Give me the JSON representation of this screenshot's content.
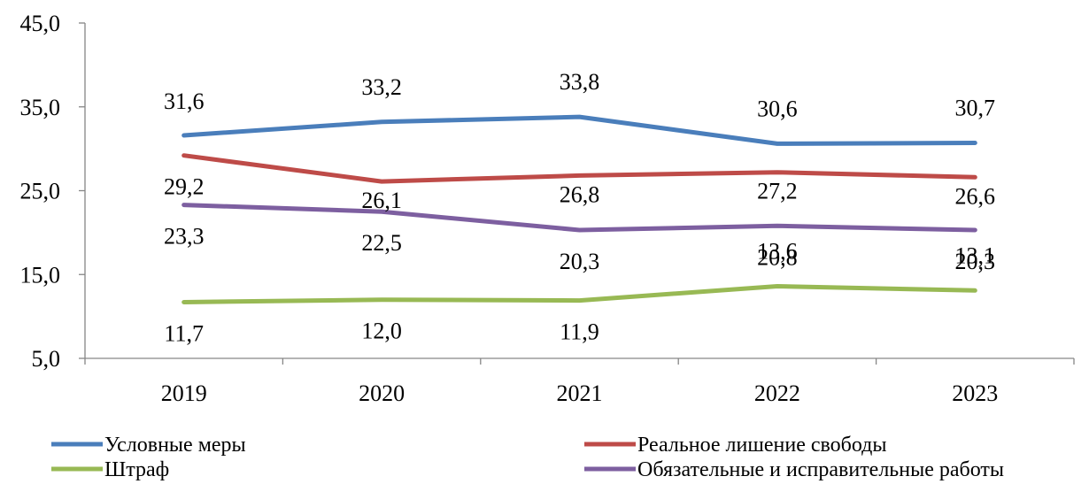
{
  "chart_data": {
    "type": "line",
    "title": "",
    "xlabel": "",
    "ylabel": "",
    "categories": [
      "2019",
      "2020",
      "2021",
      "2022",
      "2023"
    ],
    "ylim": [
      5,
      45
    ],
    "yticks": [
      5,
      15,
      25,
      35,
      45
    ],
    "ytick_labels": [
      "5,0",
      "15,0",
      "25,0",
      "35,0",
      "45,0"
    ],
    "grid": false,
    "legend_position": "bottom",
    "series": [
      {
        "name": "Условные меры",
        "color": "#4a7ebb",
        "values": [
          31.6,
          33.2,
          33.8,
          30.6,
          30.7
        ],
        "labels": [
          "31,6",
          "33,2",
          "33,8",
          "30,6",
          "30,7"
        ]
      },
      {
        "name": "Реальное лишение свободы",
        "color": "#be4b48",
        "values": [
          29.2,
          26.1,
          26.8,
          27.2,
          26.6
        ],
        "labels": [
          "29,2",
          "26,1",
          "26,8",
          "27,2",
          "26,6"
        ]
      },
      {
        "name": "Штраф",
        "color": "#98b954",
        "values": [
          11.7,
          12.0,
          11.9,
          13.6,
          13.1
        ],
        "labels": [
          "11,7",
          "12,0",
          "11,9",
          "13,6",
          "13,1"
        ]
      },
      {
        "name": "Обязательные и исправительные работы",
        "color": "#7d5fa0",
        "values": [
          23.3,
          22.5,
          20.3,
          20.8,
          20.3
        ],
        "labels": [
          "23,3",
          "22,5",
          "20,3",
          "20,8",
          "20,3"
        ]
      }
    ]
  }
}
